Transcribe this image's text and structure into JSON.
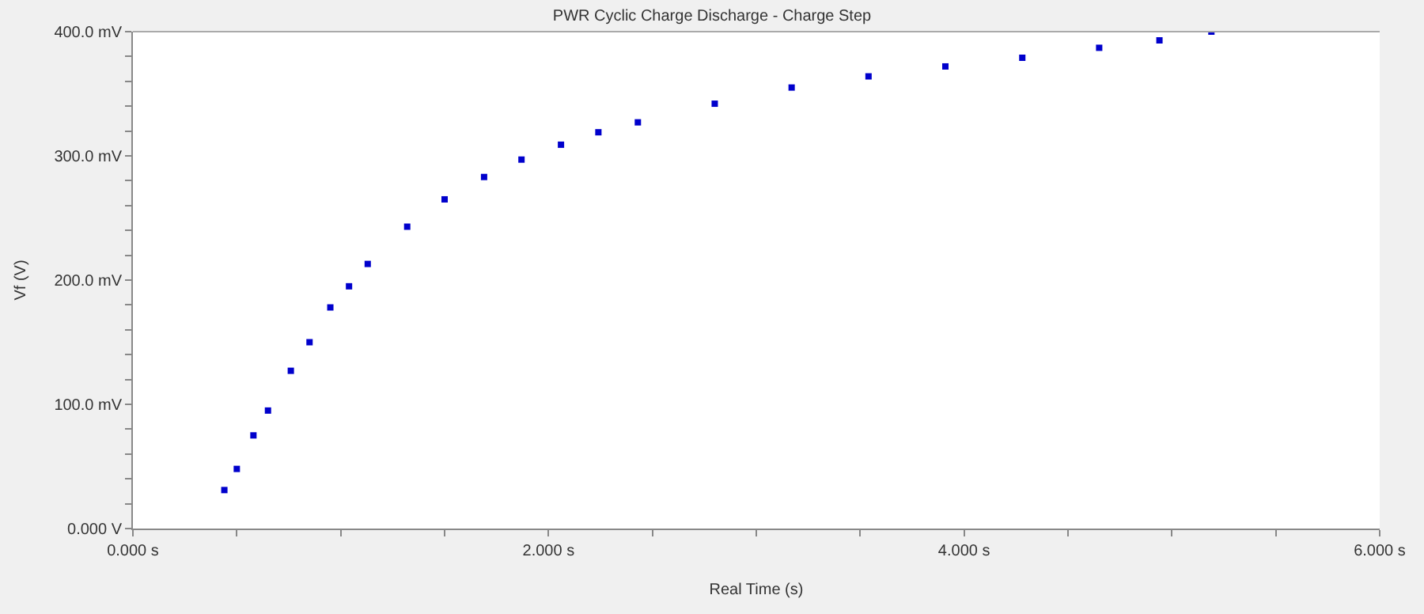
{
  "chart_data": {
    "type": "scatter",
    "title": "PWR Cyclic Charge Discharge - Charge Step",
    "xlabel": "Real Time (s)",
    "ylabel": "Vf (V)",
    "marker": "square",
    "x": [
      0.44,
      0.5,
      0.58,
      0.65,
      0.76,
      0.85,
      0.95,
      1.04,
      1.13,
      1.32,
      1.5,
      1.69,
      1.87,
      2.06,
      2.24,
      2.43,
      2.8,
      3.17,
      3.54,
      3.91,
      4.28,
      4.65,
      4.94,
      5.19
    ],
    "series": [
      {
        "color": "#0000cc",
        "values": [
          31,
          48,
          75,
          95,
          127,
          150,
          178,
          195,
          213,
          243,
          265,
          283,
          297,
          309,
          319,
          327,
          342,
          355,
          364,
          372,
          379,
          387,
          393,
          400
        ]
      }
    ],
    "xlim": [
      0,
      6
    ],
    "ylim": [
      0,
      400
    ],
    "xticks": [
      {
        "value": 0,
        "label": "0.000 s"
      },
      {
        "value": 0.5,
        "label": null
      },
      {
        "value": 1,
        "label": null
      },
      {
        "value": 1.5,
        "label": null
      },
      {
        "value": 2,
        "label": "2.000 s"
      },
      {
        "value": 2.5,
        "label": null
      },
      {
        "value": 3,
        "label": null
      },
      {
        "value": 3.5,
        "label": null
      },
      {
        "value": 4,
        "label": "4.000 s"
      },
      {
        "value": 4.5,
        "label": null
      },
      {
        "value": 5,
        "label": null
      },
      {
        "value": 5.5,
        "label": null
      },
      {
        "value": 6,
        "label": "6.000 s"
      }
    ],
    "yticks": [
      {
        "value": 0,
        "label": "0.000 V"
      },
      {
        "value": 20,
        "label": null
      },
      {
        "value": 40,
        "label": null
      },
      {
        "value": 60,
        "label": null
      },
      {
        "value": 80,
        "label": null
      },
      {
        "value": 100,
        "label": "100.0 mV"
      },
      {
        "value": 120,
        "label": null
      },
      {
        "value": 140,
        "label": null
      },
      {
        "value": 160,
        "label": null
      },
      {
        "value": 180,
        "label": null
      },
      {
        "value": 200,
        "label": "200.0 mV"
      },
      {
        "value": 220,
        "label": null
      },
      {
        "value": 240,
        "label": null
      },
      {
        "value": 260,
        "label": null
      },
      {
        "value": 280,
        "label": null
      },
      {
        "value": 300,
        "label": "300.0 mV"
      },
      {
        "value": 320,
        "label": null
      },
      {
        "value": 340,
        "label": null
      },
      {
        "value": 360,
        "label": null
      },
      {
        "value": 380,
        "label": null
      },
      {
        "value": 400,
        "label": "400.0 mV"
      }
    ]
  }
}
